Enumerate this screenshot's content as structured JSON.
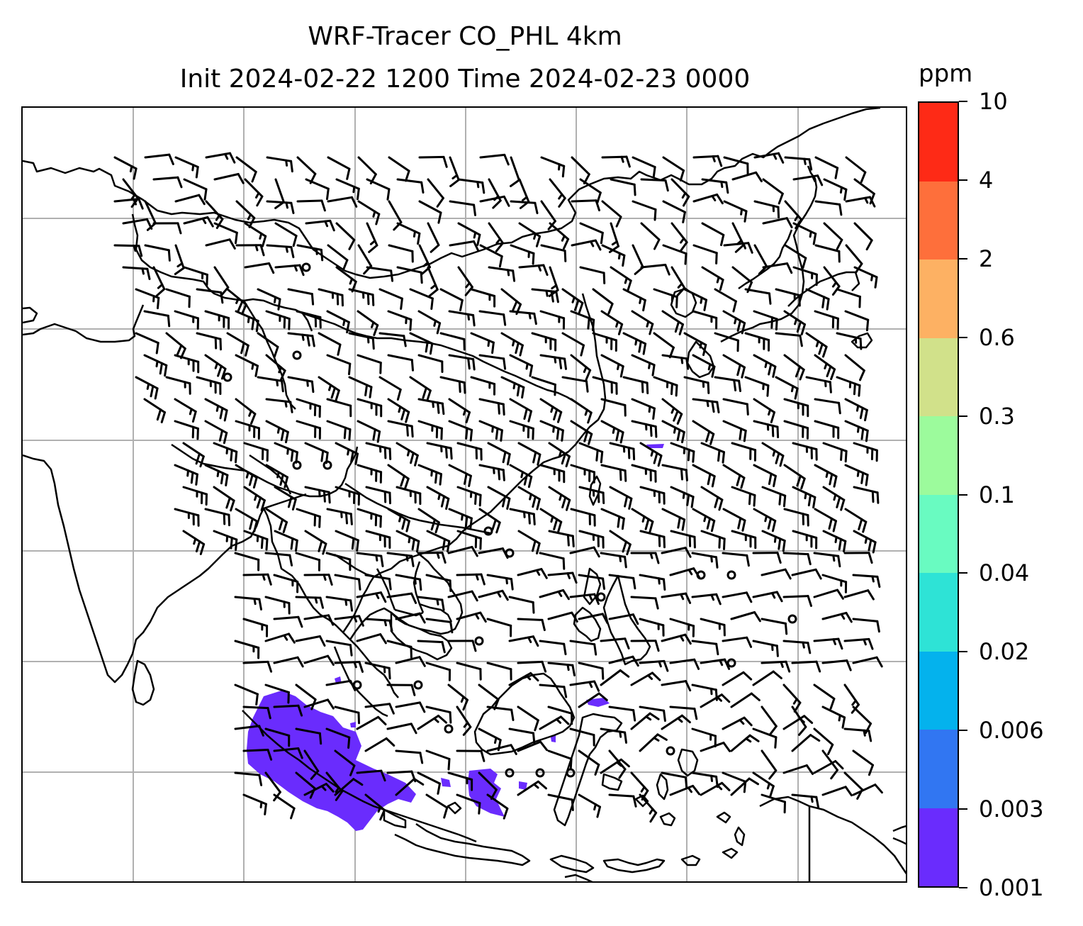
{
  "title": {
    "line1": "WRF-Tracer CO_PHL 4km",
    "line2": "Init 2024-02-22 1200 Time 2024-02-23 0000"
  },
  "colorbar": {
    "unit": "ppm",
    "tick_labels": [
      "0.001",
      "0.003",
      "0.006",
      "0.02",
      "0.04",
      "0.1",
      "0.3",
      "0.6",
      "2",
      "4",
      "10"
    ],
    "colors": [
      "#6a2cfd",
      "#3176f2",
      "#04b2ed",
      "#2ee3d6",
      "#69fbc1",
      "#9cfb9c",
      "#d1e18a",
      "#fdb163",
      "#fe6f3b",
      "#fe2a16"
    ]
  },
  "map": {
    "gridlines": true,
    "grid_color": "#b0b0b0",
    "coastline_color": "#000000",
    "tracer_color": "#6a2cfd",
    "wind_symbol": "wind-barb",
    "calm_symbol": "circle"
  }
}
